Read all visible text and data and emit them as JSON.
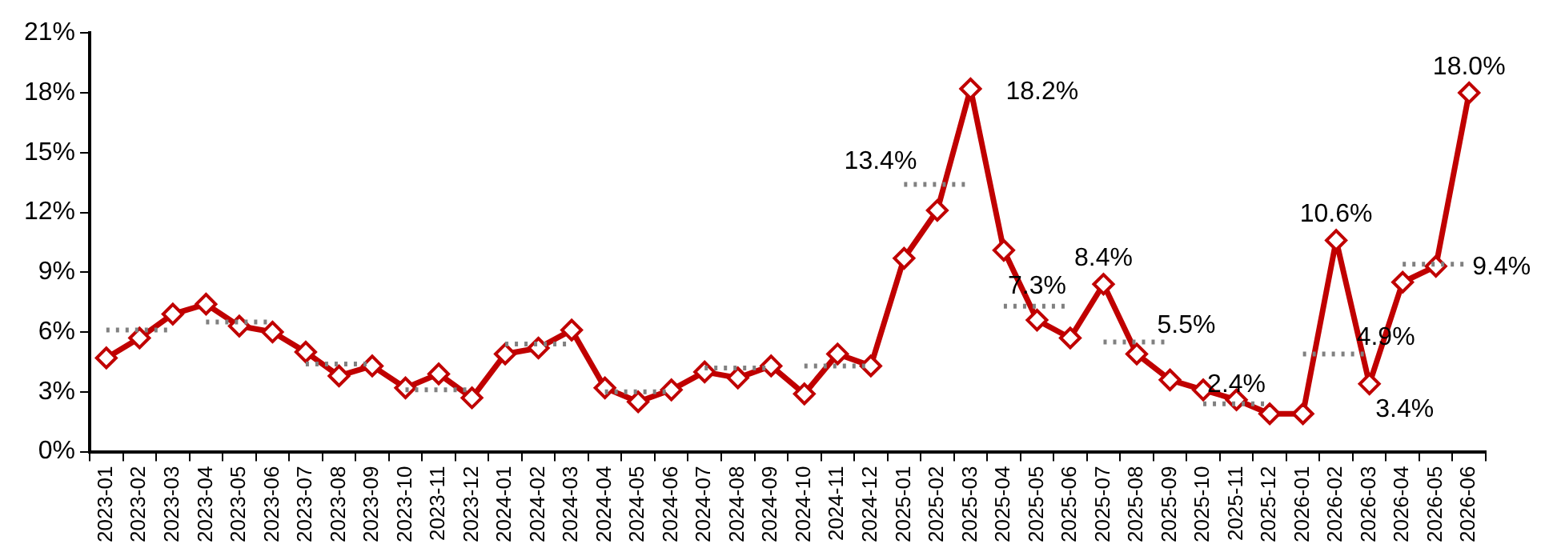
{
  "chart_data": {
    "type": "line",
    "categories": [
      "2023-01",
      "2023-02",
      "2023-03",
      "2023-04",
      "2023-05",
      "2023-06",
      "2023-07",
      "2023-08",
      "2023-09",
      "2023-10",
      "2023-11",
      "2023-12",
      "2024-01",
      "2024-02",
      "2024-03",
      "2024-04",
      "2024-05",
      "2024-06",
      "2024-07",
      "2024-08",
      "2024-09",
      "2024-10",
      "2024-11",
      "2024-12",
      "2025-01",
      "2025-02",
      "2025-03",
      "2025-04",
      "2025-05",
      "2025-06",
      "2025-07",
      "2025-08",
      "2025-09",
      "2025-10",
      "2025-11",
      "2025-12",
      "2026-01",
      "2026-02",
      "2026-03",
      "2026-04",
      "2026-05",
      "2026-06"
    ],
    "series": [
      {
        "color": "#c00000",
        "marker": "diamond",
        "line_style": "solid",
        "values": [
          4.7,
          5.7,
          6.9,
          7.4,
          6.3,
          6.0,
          5.0,
          3.8,
          4.3,
          3.2,
          3.9,
          2.7,
          4.9,
          5.2,
          6.1,
          3.2,
          2.5,
          3.1,
          4.0,
          3.7,
          4.3,
          2.9,
          4.9,
          4.3,
          9.7,
          12.1,
          18.2,
          10.1,
          6.6,
          5.7,
          8.4,
          4.9,
          3.6,
          3.1,
          2.6,
          1.9,
          1.9,
          10.6,
          3.4,
          8.5,
          9.3,
          18.0
        ],
        "value_labels": [
          null,
          null,
          null,
          null,
          null,
          null,
          null,
          null,
          null,
          null,
          null,
          null,
          null,
          null,
          null,
          null,
          null,
          null,
          null,
          null,
          null,
          null,
          null,
          null,
          null,
          null,
          "18.2%",
          null,
          null,
          null,
          "8.4%",
          null,
          null,
          null,
          null,
          null,
          null,
          "10.6%",
          "3.4%",
          null,
          null,
          "18.0%"
        ]
      },
      {
        "type": "step",
        "color": "#808080",
        "marker": "none",
        "line_style": "dotted",
        "values": [
          6.1,
          6.1,
          6.1,
          6.5,
          6.5,
          6.5,
          4.4,
          4.4,
          4.4,
          3.1,
          3.1,
          3.1,
          5.4,
          5.4,
          5.4,
          3.0,
          3.0,
          3.0,
          4.2,
          4.2,
          4.2,
          4.3,
          4.3,
          4.3,
          13.4,
          13.4,
          13.4,
          7.3,
          7.3,
          7.3,
          5.5,
          5.5,
          5.5,
          2.4,
          2.4,
          2.4,
          4.9,
          4.9,
          4.9,
          9.4,
          9.4,
          9.4
        ],
        "value_labels": [
          null,
          null,
          null,
          null,
          null,
          null,
          null,
          null,
          null,
          null,
          null,
          null,
          null,
          null,
          null,
          null,
          null,
          null,
          null,
          null,
          null,
          null,
          null,
          null,
          "13.4%",
          null,
          null,
          null,
          "7.3%",
          null,
          null,
          null,
          "5.5%",
          null,
          "2.4%",
          null,
          null,
          null,
          "4.9%",
          null,
          null,
          "9.4%"
        ]
      }
    ],
    "ylim": [
      0,
      21
    ],
    "yticks": [
      {
        "value": 0,
        "label": "0%"
      },
      {
        "value": 3,
        "label": "3%"
      },
      {
        "value": 6,
        "label": "6%"
      },
      {
        "value": 9,
        "label": "9%"
      },
      {
        "value": 12,
        "label": "12%"
      },
      {
        "value": 15,
        "label": "15%"
      },
      {
        "value": 18,
        "label": "18%"
      },
      {
        "value": 21,
        "label": "21%"
      }
    ],
    "grid": false,
    "legend": false
  }
}
